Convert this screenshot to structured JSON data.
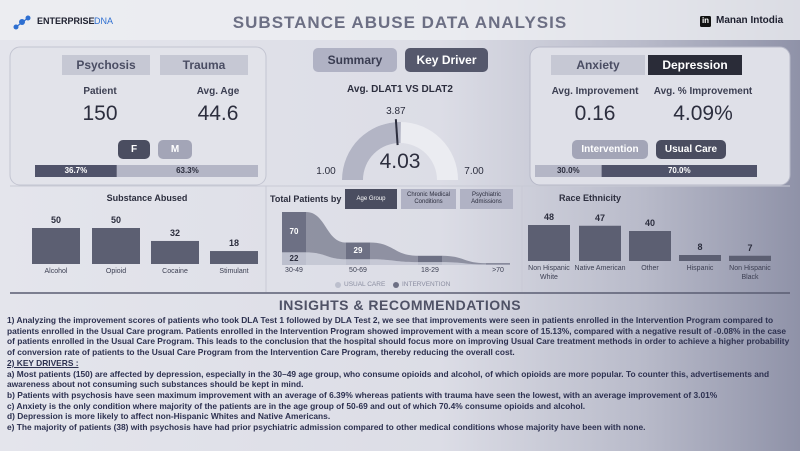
{
  "header": {
    "logo_main": "ENTERPRISE",
    "logo_accent": "DNA",
    "title": "SUBSTANCE ABUSE DATA ANALYSIS",
    "linkedin": "in",
    "author": "Manan Intodia"
  },
  "nav": [
    "Summary",
    "Key Driver"
  ],
  "left_panel": {
    "tabs": [
      "Psychosis",
      "Trauma"
    ],
    "kpis": [
      {
        "label": "Patient",
        "value": 150
      },
      {
        "label": "Avg. Age",
        "value": 44.6
      }
    ],
    "buttons": [
      "F",
      "M"
    ],
    "split": {
      "values": [
        36.7,
        63.3
      ],
      "value_labels": [
        "36.7%",
        "63.3%"
      ],
      "colors": [
        "#50536a",
        "#b4b6c6"
      ]
    }
  },
  "gauge": {
    "title": "Avg. DLAT1 VS DLAT2",
    "min": {
      "value": 1,
      "label": "1.00"
    },
    "max": {
      "value": 7,
      "label": "7.00"
    },
    "value": 4.03,
    "target": 3.87,
    "color": "#b3b5c5",
    "track_color": "#ebecf1"
  },
  "right_panel": {
    "tabs": [
      "Anxiety",
      "Depression"
    ],
    "kpis": [
      {
        "label": "Avg. Improvement",
        "value": 0.16
      },
      {
        "label": "Avg. % Improvement",
        "value": 4.09,
        "value_label": "4.09%"
      }
    ],
    "buttons": [
      "Intervention",
      "Usual Care"
    ],
    "split": {
      "values": [
        30.0,
        70.0
      ],
      "value_labels": [
        "30.0%",
        "70.0%"
      ],
      "colors": [
        "#b4b6c6",
        "#50536a"
      ]
    }
  },
  "substance_chart": {
    "type": "bar",
    "title": "Substance Abused",
    "categories": [
      "Alcohol",
      "Opioid",
      "Cocaine",
      "Stimulant"
    ],
    "values": [
      50,
      50,
      32,
      18
    ],
    "color": "#5c5f72"
  },
  "age_chart": {
    "type": "ribbon",
    "title": "Total Patients by",
    "filters": [
      "Age Group",
      "Chronic Medical Conditions",
      "Psychiatric Admissions"
    ],
    "categories": [
      "30-49",
      "50-69",
      "18-29",
      ">70"
    ],
    "series": [
      {
        "name": "USUAL CARE",
        "color": "#bcbfcd",
        "values": [
          22,
          10,
          5,
          1
        ]
      },
      {
        "name": "INTERVENTION",
        "color": "#6d7084",
        "values": [
          70,
          29,
          11,
          2
        ]
      }
    ]
  },
  "race_chart": {
    "type": "bar",
    "title": "Race Ethnicity",
    "categories": [
      "Non Hispanic White",
      "Native American",
      "Other",
      "Hispanic",
      "Non Hispanic Black"
    ],
    "values": [
      48,
      47,
      40,
      8,
      7
    ],
    "color": "#5c5f72"
  },
  "insights": {
    "title": "INSIGHTS & RECOMMENDATIONS",
    "intro": "1) Analyzing the improvement scores of patients who took DLA Test 1 followed by DLA Test 2, we see that improvements were seen in patients enrolled in the Intervention Program compared to patients enrolled in the Usual Care program. Patients enrolled in the Intervention Program showed improvement with a mean score of 15.13%, compared with a negative result of -0.08% in the case of patients enrolled in the Usual Care Program. This leads to the conclusion that the hospital should focus more on improving Usual Care treatment methods in order to achieve a higher probability of conversion rate of patients to the Usual Care Program from the Intervention Care Program, thereby reducing the overall cost.",
    "heading": "2) KEY DRIVERS :",
    "items": [
      "a) Most patients (150) are affected by depression, especially in the 30–49 age group, who consume opioids and alcohol, of which opioids are more popular. To counter this, advertisements and awareness about not consuming such substances should be kept in mind.",
      "b) Patients with psychosis have seen maximum improvement with an average of 6.39% whereas patients with trauma have seen the lowest, with an average improvement of 3.01%",
      "c) Anxiety is the only condition where majority of the patients are in the age group of 50-69 and out of which 70.4% consume opioids and alcohol.",
      "d) Depression is more likely to affect non-Hispanic Whites and Native Americans.",
      "e) The majority of patients (38) with psychosis have had prior psychiatric admission compared to other medical conditions whose majority have been with none."
    ]
  }
}
